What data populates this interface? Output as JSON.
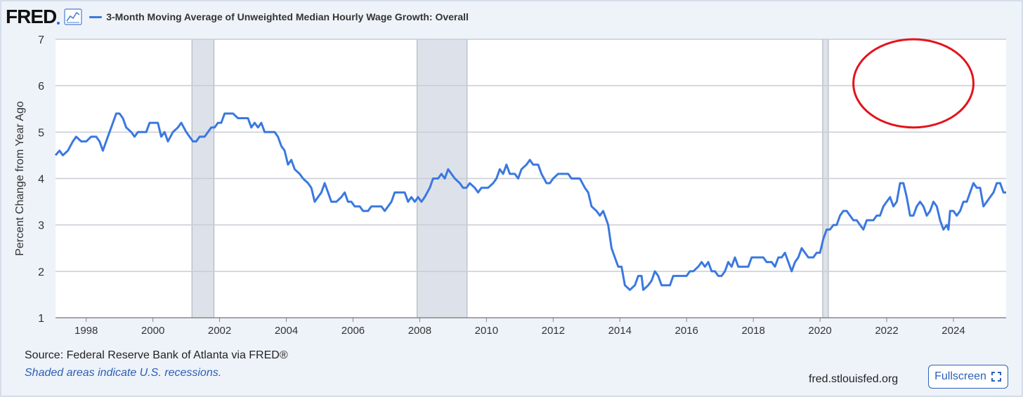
{
  "header": {
    "logo_text": "FRED",
    "series_title": "3-Month Moving Average of Unweighted Median Hourly Wage Growth: Overall"
  },
  "colors": {
    "series": "#3b78df",
    "recession": "#dde2ea",
    "annotation": "#e3131c",
    "grid": "#c8ccd2",
    "plot_bg": "#ffffff"
  },
  "footer": {
    "source": "Source: Federal Reserve Bank of Atlanta via FRED®",
    "note": "Shaded areas indicate U.S. recessions.",
    "url": "fred.stlouisfed.org",
    "fullscreen_label": "Fullscreen"
  },
  "chart_data": {
    "type": "line",
    "title": "3-Month Moving Average of Unweighted Median Hourly Wage Growth: Overall",
    "ylabel": "Percent Change from Year Ago",
    "xlabel": "",
    "xlim": [
      1997.08,
      2025.58
    ],
    "ylim": [
      1,
      7
    ],
    "x_ticks": [
      "1998",
      "2000",
      "2002",
      "2004",
      "2006",
      "2008",
      "2010",
      "2012",
      "2014",
      "2016",
      "2018",
      "2020",
      "2022",
      "2024"
    ],
    "y_ticks": [
      "1",
      "2",
      "3",
      "4",
      "5",
      "6",
      "7"
    ],
    "grid": true,
    "recessions": [
      [
        2001.17,
        2001.83
      ],
      [
        2007.92,
        2009.42
      ],
      [
        2020.08,
        2020.25
      ]
    ],
    "annotation": {
      "shape": "ellipse",
      "center": [
        2022.8,
        6.05
      ],
      "rx_years": 1.8,
      "ry": 0.95
    },
    "series": [
      {
        "name": "3-Month Moving Average of Unweighted Median Hourly Wage Growth: Overall",
        "points": [
          [
            1997.08,
            4.5
          ],
          [
            1997.2,
            4.6
          ],
          [
            1997.3,
            4.5
          ],
          [
            1997.45,
            4.6
          ],
          [
            1997.6,
            4.8
          ],
          [
            1997.7,
            4.9
          ],
          [
            1997.85,
            4.8
          ],
          [
            1998.0,
            4.8
          ],
          [
            1998.15,
            4.9
          ],
          [
            1998.3,
            4.9
          ],
          [
            1998.4,
            4.8
          ],
          [
            1998.5,
            4.6
          ],
          [
            1998.65,
            4.9
          ],
          [
            1998.8,
            5.2
          ],
          [
            1998.9,
            5.4
          ],
          [
            1999.0,
            5.4
          ],
          [
            1999.1,
            5.3
          ],
          [
            1999.2,
            5.1
          ],
          [
            1999.35,
            5.0
          ],
          [
            1999.45,
            4.9
          ],
          [
            1999.55,
            5.0
          ],
          [
            1999.7,
            5.0
          ],
          [
            1999.8,
            5.0
          ],
          [
            1999.9,
            5.2
          ],
          [
            2000.05,
            5.2
          ],
          [
            2000.15,
            5.2
          ],
          [
            2000.25,
            4.9
          ],
          [
            2000.35,
            5.0
          ],
          [
            2000.45,
            4.8
          ],
          [
            2000.6,
            5.0
          ],
          [
            2000.75,
            5.1
          ],
          [
            2000.85,
            5.2
          ],
          [
            2001.0,
            5.0
          ],
          [
            2001.1,
            4.9
          ],
          [
            2001.2,
            4.8
          ],
          [
            2001.3,
            4.8
          ],
          [
            2001.4,
            4.9
          ],
          [
            2001.55,
            4.9
          ],
          [
            2001.65,
            5.0
          ],
          [
            2001.75,
            5.1
          ],
          [
            2001.85,
            5.1
          ],
          [
            2001.95,
            5.2
          ],
          [
            2002.05,
            5.2
          ],
          [
            2002.15,
            5.4
          ],
          [
            2002.3,
            5.4
          ],
          [
            2002.4,
            5.4
          ],
          [
            2002.55,
            5.3
          ],
          [
            2002.7,
            5.3
          ],
          [
            2002.85,
            5.3
          ],
          [
            2002.95,
            5.1
          ],
          [
            2003.05,
            5.2
          ],
          [
            2003.15,
            5.1
          ],
          [
            2003.25,
            5.2
          ],
          [
            2003.35,
            5.0
          ],
          [
            2003.5,
            5.0
          ],
          [
            2003.65,
            5.0
          ],
          [
            2003.75,
            4.9
          ],
          [
            2003.85,
            4.7
          ],
          [
            2003.95,
            4.6
          ],
          [
            2004.05,
            4.3
          ],
          [
            2004.15,
            4.4
          ],
          [
            2004.25,
            4.2
          ],
          [
            2004.4,
            4.1
          ],
          [
            2004.5,
            4.0
          ],
          [
            2004.65,
            3.9
          ],
          [
            2004.75,
            3.8
          ],
          [
            2004.85,
            3.5
          ],
          [
            2004.95,
            3.6
          ],
          [
            2005.05,
            3.7
          ],
          [
            2005.15,
            3.9
          ],
          [
            2005.25,
            3.7
          ],
          [
            2005.35,
            3.5
          ],
          [
            2005.5,
            3.5
          ],
          [
            2005.65,
            3.6
          ],
          [
            2005.75,
            3.7
          ],
          [
            2005.85,
            3.5
          ],
          [
            2005.95,
            3.5
          ],
          [
            2006.05,
            3.4
          ],
          [
            2006.2,
            3.4
          ],
          [
            2006.3,
            3.3
          ],
          [
            2006.45,
            3.3
          ],
          [
            2006.55,
            3.4
          ],
          [
            2006.7,
            3.4
          ],
          [
            2006.85,
            3.4
          ],
          [
            2006.95,
            3.3
          ],
          [
            2007.05,
            3.4
          ],
          [
            2007.15,
            3.5
          ],
          [
            2007.25,
            3.7
          ],
          [
            2007.4,
            3.7
          ],
          [
            2007.55,
            3.7
          ],
          [
            2007.65,
            3.5
          ],
          [
            2007.75,
            3.6
          ],
          [
            2007.85,
            3.5
          ],
          [
            2007.95,
            3.6
          ],
          [
            2008.05,
            3.5
          ],
          [
            2008.15,
            3.6
          ],
          [
            2008.3,
            3.8
          ],
          [
            2008.4,
            4.0
          ],
          [
            2008.55,
            4.0
          ],
          [
            2008.65,
            4.1
          ],
          [
            2008.75,
            4.0
          ],
          [
            2008.85,
            4.2
          ],
          [
            2008.95,
            4.1
          ],
          [
            2009.05,
            4.0
          ],
          [
            2009.2,
            3.9
          ],
          [
            2009.3,
            3.8
          ],
          [
            2009.4,
            3.8
          ],
          [
            2009.5,
            3.9
          ],
          [
            2009.65,
            3.8
          ],
          [
            2009.75,
            3.7
          ],
          [
            2009.85,
            3.8
          ],
          [
            2009.95,
            3.8
          ],
          [
            2010.05,
            3.8
          ],
          [
            2010.2,
            3.9
          ],
          [
            2010.3,
            4.0
          ],
          [
            2010.4,
            4.2
          ],
          [
            2010.5,
            4.1
          ],
          [
            2010.6,
            4.3
          ],
          [
            2010.7,
            4.1
          ],
          [
            2010.85,
            4.1
          ],
          [
            2010.95,
            4.0
          ],
          [
            2011.05,
            4.2
          ],
          [
            2011.2,
            4.3
          ],
          [
            2011.3,
            4.4
          ],
          [
            2011.4,
            4.3
          ],
          [
            2011.55,
            4.3
          ],
          [
            2011.65,
            4.1
          ],
          [
            2011.8,
            3.9
          ],
          [
            2011.9,
            3.9
          ],
          [
            2012.0,
            4.0
          ],
          [
            2012.15,
            4.1
          ],
          [
            2012.3,
            4.1
          ],
          [
            2012.45,
            4.1
          ],
          [
            2012.55,
            4.0
          ],
          [
            2012.7,
            4.0
          ],
          [
            2012.8,
            4.0
          ],
          [
            2012.95,
            3.8
          ],
          [
            2013.05,
            3.7
          ],
          [
            2013.15,
            3.4
          ],
          [
            2013.3,
            3.3
          ],
          [
            2013.4,
            3.2
          ],
          [
            2013.5,
            3.3
          ],
          [
            2013.6,
            3.1
          ],
          [
            2013.65,
            3.0
          ],
          [
            2013.75,
            2.5
          ],
          [
            2013.85,
            2.3
          ],
          [
            2013.95,
            2.1
          ],
          [
            2014.05,
            2.1
          ],
          [
            2014.15,
            1.7
          ],
          [
            2014.3,
            1.6
          ],
          [
            2014.45,
            1.7
          ],
          [
            2014.55,
            1.9
          ],
          [
            2014.65,
            1.9
          ],
          [
            2014.7,
            1.6
          ],
          [
            2014.85,
            1.7
          ],
          [
            2014.95,
            1.8
          ],
          [
            2015.05,
            2.0
          ],
          [
            2015.15,
            1.9
          ],
          [
            2015.25,
            1.7
          ],
          [
            2015.4,
            1.7
          ],
          [
            2015.5,
            1.7
          ],
          [
            2015.6,
            1.9
          ],
          [
            2015.75,
            1.9
          ],
          [
            2015.9,
            1.9
          ],
          [
            2016.0,
            1.9
          ],
          [
            2016.1,
            2.0
          ],
          [
            2016.2,
            2.0
          ],
          [
            2016.35,
            2.1
          ],
          [
            2016.45,
            2.2
          ],
          [
            2016.55,
            2.1
          ],
          [
            2016.65,
            2.2
          ],
          [
            2016.75,
            2.0
          ],
          [
            2016.85,
            2.0
          ],
          [
            2016.95,
            1.9
          ],
          [
            2017.05,
            1.9
          ],
          [
            2017.15,
            2.0
          ],
          [
            2017.25,
            2.2
          ],
          [
            2017.35,
            2.1
          ],
          [
            2017.45,
            2.3
          ],
          [
            2017.55,
            2.1
          ],
          [
            2017.65,
            2.1
          ],
          [
            2017.75,
            2.1
          ],
          [
            2017.85,
            2.1
          ],
          [
            2017.95,
            2.3
          ],
          [
            2018.05,
            2.3
          ],
          [
            2018.15,
            2.3
          ],
          [
            2018.3,
            2.3
          ],
          [
            2018.4,
            2.2
          ],
          [
            2018.55,
            2.2
          ],
          [
            2018.65,
            2.1
          ],
          [
            2018.75,
            2.3
          ],
          [
            2018.85,
            2.3
          ],
          [
            2018.95,
            2.4
          ],
          [
            2019.05,
            2.2
          ],
          [
            2019.15,
            2.0
          ],
          [
            2019.25,
            2.2
          ],
          [
            2019.35,
            2.3
          ],
          [
            2019.45,
            2.5
          ],
          [
            2019.55,
            2.4
          ],
          [
            2019.65,
            2.3
          ],
          [
            2019.8,
            2.3
          ],
          [
            2019.9,
            2.4
          ],
          [
            2020.0,
            2.4
          ],
          [
            2020.1,
            2.7
          ],
          [
            2020.2,
            2.9
          ],
          [
            2020.3,
            2.9
          ],
          [
            2020.4,
            3.0
          ],
          [
            2020.5,
            3.0
          ],
          [
            2020.6,
            3.2
          ],
          [
            2020.7,
            3.3
          ],
          [
            2020.8,
            3.3
          ],
          [
            2020.9,
            3.2
          ],
          [
            2021.0,
            3.1
          ],
          [
            2021.1,
            3.1
          ],
          [
            2021.2,
            3.0
          ],
          [
            2021.3,
            2.9
          ],
          [
            2021.4,
            3.1
          ],
          [
            2021.5,
            3.1
          ],
          [
            2021.6,
            3.1
          ],
          [
            2021.7,
            3.2
          ],
          [
            2021.8,
            3.2
          ],
          [
            2021.9,
            3.4
          ],
          [
            2022.0,
            3.5
          ],
          [
            2022.1,
            3.6
          ],
          [
            2022.2,
            3.4
          ],
          [
            2022.3,
            3.5
          ],
          [
            2022.4,
            3.9
          ],
          [
            2022.5,
            3.9
          ],
          [
            2022.6,
            3.6
          ],
          [
            2022.7,
            3.2
          ],
          [
            2022.8,
            3.2
          ],
          [
            2022.9,
            3.4
          ],
          [
            2023.0,
            3.5
          ],
          [
            2023.1,
            3.4
          ],
          [
            2023.2,
            3.2
          ],
          [
            2023.3,
            3.3
          ],
          [
            2023.4,
            3.5
          ],
          [
            2023.5,
            3.4
          ],
          [
            2023.6,
            3.1
          ],
          [
            2023.7,
            2.9
          ],
          [
            2023.8,
            3.0
          ],
          [
            2023.85,
            2.9
          ],
          [
            2023.9,
            3.3
          ],
          [
            2024.0,
            3.3
          ],
          [
            2024.1,
            3.2
          ],
          [
            2024.2,
            3.3
          ],
          [
            2024.3,
            3.5
          ],
          [
            2024.4,
            3.5
          ],
          [
            2024.5,
            3.7
          ],
          [
            2024.6,
            3.9
          ],
          [
            2024.7,
            3.8
          ],
          [
            2024.8,
            3.8
          ],
          [
            2024.9,
            3.4
          ],
          [
            2025.0,
            3.5
          ],
          [
            2025.1,
            3.6
          ],
          [
            2025.2,
            3.7
          ],
          [
            2025.3,
            3.9
          ],
          [
            2025.4,
            3.9
          ],
          [
            2025.5,
            3.7
          ],
          [
            2025.58,
            3.7
          ]
        ]
      }
    ]
  }
}
